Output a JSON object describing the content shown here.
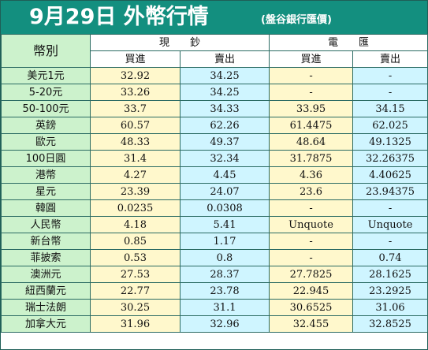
{
  "header": {
    "title": "9月29日 外幣行情",
    "subtitle": "(盤谷銀行匯價)"
  },
  "table": {
    "name_header": "幣別",
    "group_cash": "現鈔",
    "group_transfer": "電匯",
    "sub_buy": "買進",
    "sub_sell": "賣出",
    "rows": [
      {
        "name": "美元1元",
        "cash_buy": "32.92",
        "cash_sell": "34.25",
        "tt_buy": "-",
        "tt_sell": "-"
      },
      {
        "name": "5-20元",
        "cash_buy": "33.26",
        "cash_sell": "34.25",
        "tt_buy": "-",
        "tt_sell": "-"
      },
      {
        "name": "50-100元",
        "cash_buy": "33.7",
        "cash_sell": "34.33",
        "tt_buy": "33.95",
        "tt_sell": "34.15"
      },
      {
        "name": "英鎊",
        "cash_buy": "60.57",
        "cash_sell": "62.26",
        "tt_buy": "61.4475",
        "tt_sell": "62.025"
      },
      {
        "name": "歐元",
        "cash_buy": "48.33",
        "cash_sell": "49.37",
        "tt_buy": "48.64",
        "tt_sell": "49.1325"
      },
      {
        "name": "100日圓",
        "cash_buy": "31.4",
        "cash_sell": "32.34",
        "tt_buy": "31.7875",
        "tt_sell": "32.26375"
      },
      {
        "name": "港幣",
        "cash_buy": "4.27",
        "cash_sell": "4.45",
        "tt_buy": "4.36",
        "tt_sell": "4.40625"
      },
      {
        "name": "星元",
        "cash_buy": "23.39",
        "cash_sell": "24.07",
        "tt_buy": "23.6",
        "tt_sell": "23.94375"
      },
      {
        "name": "韓圓",
        "cash_buy": "0.0235",
        "cash_sell": "0.0308",
        "tt_buy": "-",
        "tt_sell": "-"
      },
      {
        "name": "人民幣",
        "cash_buy": "4.18",
        "cash_sell": "5.41",
        "tt_buy": "Unquote",
        "tt_sell": "Unquote"
      },
      {
        "name": "新台幣",
        "cash_buy": "0.85",
        "cash_sell": "1.17",
        "tt_buy": "-",
        "tt_sell": "-"
      },
      {
        "name": "菲披索",
        "cash_buy": "0.53",
        "cash_sell": "0.8",
        "tt_buy": "-",
        "tt_sell": "0.74"
      },
      {
        "name": "澳洲元",
        "cash_buy": "27.53",
        "cash_sell": "28.37",
        "tt_buy": "27.7825",
        "tt_sell": "28.1625"
      },
      {
        "name": "紐西蘭元",
        "cash_buy": "22.77",
        "cash_sell": "23.78",
        "tt_buy": "22.945",
        "tt_sell": "23.2925"
      },
      {
        "name": "瑞士法朗",
        "cash_buy": "30.25",
        "cash_sell": "31.1",
        "tt_buy": "30.6525",
        "tt_sell": "31.06"
      },
      {
        "name": "加拿大元",
        "cash_buy": "31.96",
        "cash_sell": "32.96",
        "tt_buy": "32.455",
        "tt_sell": "32.8525"
      }
    ]
  },
  "colors": {
    "title_bar": "#138f7f",
    "name_column": "#ccf2cc",
    "buy_column": "#fff8cc",
    "sell_column": "#cff5ff",
    "border": "#2b6b63"
  }
}
